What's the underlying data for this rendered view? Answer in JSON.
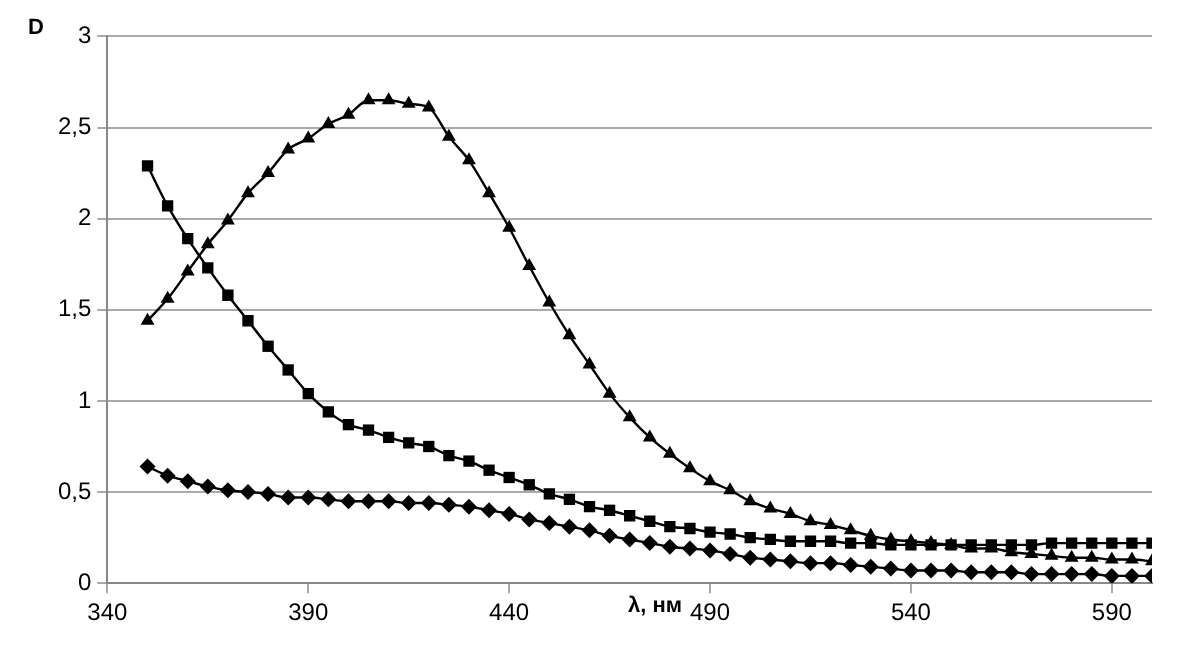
{
  "chart_data": {
    "type": "line",
    "xlabel": "λ, нм",
    "ylabel": "D",
    "xlim": [
      340,
      600
    ],
    "xticks": [
      340,
      390,
      440,
      490,
      540,
      590
    ],
    "ylim": [
      0,
      3
    ],
    "yticks": [
      0,
      {
        "value": 0.5,
        "label": "0,5"
      },
      1,
      {
        "value": 1.5,
        "label": "1,5"
      },
      2,
      {
        "value": 2.5,
        "label": "2,5"
      },
      3
    ],
    "grid": "y",
    "legend": false,
    "line_style": "solid",
    "x": [
      350,
      355,
      360,
      365,
      370,
      375,
      380,
      385,
      390,
      395,
      400,
      405,
      410,
      415,
      420,
      425,
      430,
      435,
      440,
      445,
      450,
      455,
      460,
      465,
      470,
      475,
      480,
      485,
      490,
      495,
      500,
      505,
      510,
      515,
      520,
      525,
      530,
      535,
      540,
      545,
      550,
      555,
      560,
      565,
      570,
      575,
      580,
      585,
      590,
      595,
      600
    ],
    "series": [
      {
        "color": "#000000",
        "marker": "triangle",
        "values": [
          1.44,
          1.56,
          1.71,
          1.86,
          1.99,
          2.14,
          2.25,
          2.38,
          2.44,
          2.52,
          2.57,
          2.65,
          2.65,
          2.63,
          2.61,
          2.45,
          2.32,
          2.14,
          1.95,
          1.74,
          1.54,
          1.36,
          1.2,
          1.04,
          0.91,
          0.8,
          0.71,
          0.63,
          0.56,
          0.51,
          0.45,
          0.41,
          0.38,
          0.34,
          0.32,
          0.29,
          0.26,
          0.24,
          0.23,
          0.22,
          0.21,
          0.19,
          0.19,
          0.17,
          0.16,
          0.15,
          0.14,
          0.14,
          0.13,
          0.13,
          0.12
        ]
      },
      {
        "color": "#000000",
        "marker": "square",
        "values": [
          2.29,
          2.07,
          1.89,
          1.73,
          1.58,
          1.44,
          1.3,
          1.17,
          1.04,
          0.94,
          0.87,
          0.84,
          0.8,
          0.77,
          0.75,
          0.7,
          0.67,
          0.62,
          0.58,
          0.54,
          0.49,
          0.46,
          0.42,
          0.4,
          0.37,
          0.34,
          0.31,
          0.3,
          0.28,
          0.27,
          0.25,
          0.24,
          0.23,
          0.23,
          0.23,
          0.22,
          0.22,
          0.21,
          0.21,
          0.21,
          0.21,
          0.21,
          0.21,
          0.21,
          0.21,
          0.22,
          0.22,
          0.22,
          0.22,
          0.22,
          0.22
        ]
      },
      {
        "color": "#000000",
        "marker": "diamond",
        "values": [
          0.64,
          0.59,
          0.56,
          0.53,
          0.51,
          0.5,
          0.49,
          0.47,
          0.47,
          0.46,
          0.45,
          0.45,
          0.45,
          0.44,
          0.44,
          0.43,
          0.42,
          0.4,
          0.38,
          0.35,
          0.33,
          0.31,
          0.29,
          0.26,
          0.24,
          0.22,
          0.2,
          0.19,
          0.18,
          0.16,
          0.14,
          0.13,
          0.12,
          0.11,
          0.11,
          0.1,
          0.09,
          0.08,
          0.07,
          0.07,
          0.07,
          0.06,
          0.06,
          0.06,
          0.05,
          0.05,
          0.05,
          0.05,
          0.04,
          0.04,
          0.04
        ]
      }
    ]
  }
}
